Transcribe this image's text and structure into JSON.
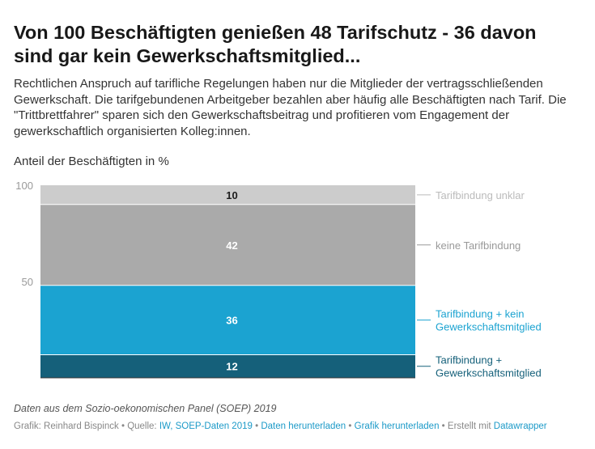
{
  "header": {
    "title": "Von 100 Beschäftigten genießen 48 Tarifschutz - 36 davon sind gar kein Gewerkschaftsmitglied...",
    "subtitle": "Rechtlichen Anspruch auf tarifliche Regelungen haben nur die Mitglieder der vertragsschließenden Gewerkschaft. Die tarifgebundenen Arbeitgeber bezahlen aber häufig alle Beschäftigten nach Tarif. Die \"Trittbrettfahrer\" sparen sich den Gewerkschaftsbeitrag und profitieren vom Engagement der gewerkschaftlich organisierten Kolleg:innen."
  },
  "chart_data": {
    "type": "bar",
    "stacked": true,
    "categories": [
      ""
    ],
    "ylabel": "Anteil der Beschäftigten in %",
    "ylim": [
      0,
      100
    ],
    "yticks": [
      "50",
      "100"
    ],
    "grid": false,
    "legend": "right",
    "series": [
      {
        "name": "Tarifbindung + Gewerkschaftsmitglied",
        "label_lines": [
          "Tarifbindung +",
          "Gewerkschaftsmitglied"
        ],
        "values": [
          12
        ],
        "color": "#15607a",
        "label_color": "#15607a",
        "value_label": "12"
      },
      {
        "name": "Tarifbindung + kein Gewerkschaftsmitglied",
        "label_lines": [
          "Tarifbindung + kein",
          "Gewerkschaftsmitglied"
        ],
        "values": [
          36
        ],
        "color": "#1ba3d1",
        "label_color": "#1ba3d1",
        "value_label": "36"
      },
      {
        "name": "keine Tarifbindung",
        "label_lines": [
          "keine Tarifbindung"
        ],
        "values": [
          42
        ],
        "color": "#aaaaaa",
        "label_color": "#999999",
        "value_label": "42"
      },
      {
        "name": "Tarifbindung unklar",
        "label_lines": [
          "Tarifbindung unklar"
        ],
        "values": [
          10
        ],
        "color": "#cccccc",
        "label_color": "#bbbbbb",
        "value_label": "10"
      }
    ]
  },
  "footer": {
    "notes": "Daten aus dem Sozio-oekonomischen Panel (SOEP) 2019",
    "credit": "Grafik: Reinhard Bispinck",
    "source_label": "Quelle:",
    "source_link": "IW, SOEP-Daten 2019",
    "download_data": "Daten herunterladen",
    "download_image": "Grafik herunterladen",
    "made_with": "Erstellt mit",
    "made_with_link": "Datawrapper",
    "separator": "•"
  }
}
